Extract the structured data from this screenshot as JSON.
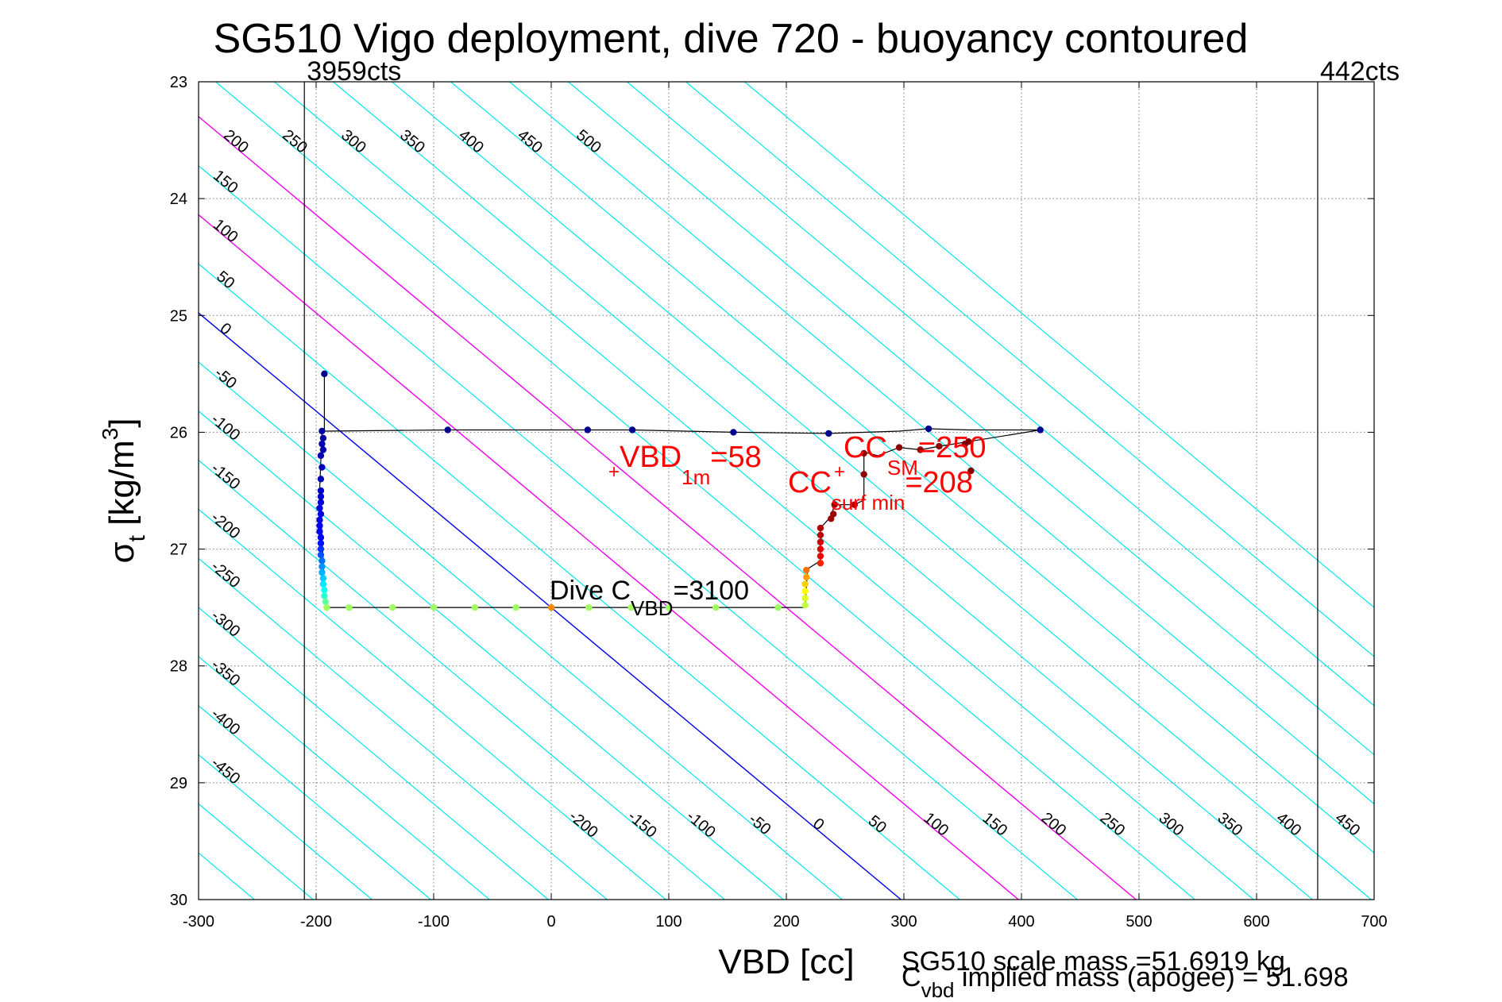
{
  "chart_data": {
    "type": "scatter",
    "title": "SG510 Vigo deployment, dive 720 - buoyancy contoured",
    "xlabel": "VBD [cc]",
    "ylabel": "σt [kg/m3]",
    "ylabel_main": "σ",
    "ylabel_sub": "t",
    "ylabel_rest": " [kg/m",
    "ylabel_sup": "3",
    "ylabel_close": "]",
    "xlim": [
      -300,
      700
    ],
    "ylim": [
      30,
      23
    ],
    "y_reversed": true,
    "grid": true,
    "x_ticks": [
      "-300",
      "-200",
      "-100",
      "0",
      "100",
      "200",
      "300",
      "400",
      "500",
      "600",
      "700"
    ],
    "y_ticks": [
      "23",
      "24",
      "25",
      "26",
      "27",
      "28",
      "29",
      "30"
    ],
    "vertical_lines": [
      {
        "x": -210,
        "label": "3959cts"
      },
      {
        "x": 652,
        "label": "442cts"
      }
    ],
    "contours": {
      "color": "#00e5ee",
      "lines": [
        {
          "b": -600
        },
        {
          "b": -550
        },
        {
          "b": -500
        },
        {
          "b": -450,
          "label": "-450",
          "label_at_top": true
        },
        {
          "b": -400,
          "label": "-400",
          "label_at_top": true
        },
        {
          "b": -350,
          "label": "-350",
          "label_at_top": true
        },
        {
          "b": -300,
          "label": "-300",
          "label_at_top": true
        },
        {
          "b": -250,
          "label": "-250",
          "label_at_top": true
        },
        {
          "b": -200,
          "label": "-200",
          "label_at_top": true,
          "label_bottom": true
        },
        {
          "b": -150,
          "label": "-150",
          "label_at_top": true,
          "label_bottom": true
        },
        {
          "b": -100,
          "label": "-100",
          "label_at_top": true,
          "label_bottom": true
        },
        {
          "b": -50,
          "label": "-50",
          "label_at_top": true,
          "label_bottom": true
        },
        {
          "b": 0,
          "label": "0",
          "label_at_top": true,
          "label_bottom": true,
          "color": "#0000ee"
        },
        {
          "b": 50,
          "label": "50",
          "label_at_top": true,
          "label_bottom": true
        },
        {
          "b": 100,
          "label": "100",
          "label_at_top": true,
          "label_bottom": true,
          "color": "#ee00ee"
        },
        {
          "b": 150,
          "label": "150",
          "label_at_top": true,
          "label_bottom": true
        },
        {
          "b": 200,
          "label": "200",
          "label_at_top": true,
          "label_bottom": true,
          "color": "#ee00ee"
        },
        {
          "b": 250,
          "label": "250",
          "label_at_top": true,
          "label_bottom": true
        },
        {
          "b": 300,
          "label": "300",
          "label_at_top": true,
          "label_bottom": true
        },
        {
          "b": 350,
          "label": "350",
          "label_at_top": true,
          "label_bottom": true
        },
        {
          "b": 400,
          "label": "400",
          "label_at_top": true,
          "label_bottom": true
        },
        {
          "b": 450,
          "label": "450",
          "label_at_top": true,
          "label_bottom": true
        },
        {
          "b": 500,
          "label": "500",
          "label_at_top": true,
          "label_bottom": true
        },
        {
          "b": 550
        },
        {
          "b": 600
        },
        {
          "b": 650
        },
        {
          "b": 700
        }
      ]
    },
    "trace": [
      [
        -193,
        25.5
      ],
      [
        -193,
        25.99
      ],
      [
        -88,
        25.98
      ],
      [
        31,
        25.98
      ],
      [
        69,
        25.98
      ],
      [
        155,
        26.0
      ],
      [
        236,
        26.01
      ],
      [
        268,
        26.0
      ],
      [
        296,
        25.99
      ],
      [
        321,
        25.97
      ],
      [
        355,
        25.98
      ],
      [
        416,
        25.98
      ],
      [
        355,
        26.08
      ],
      [
        330,
        26.12
      ],
      [
        314,
        26.15
      ],
      [
        296,
        26.13
      ],
      [
        278,
        26.2
      ],
      [
        266,
        26.17
      ],
      [
        266,
        26.58
      ],
      [
        258,
        26.62
      ],
      [
        241,
        26.62
      ],
      [
        238,
        26.72
      ],
      [
        229,
        26.82
      ],
      [
        229,
        27.1
      ],
      [
        218,
        27.17
      ],
      [
        216,
        27.5
      ],
      [
        193,
        27.5
      ],
      [
        140,
        27.5
      ],
      [
        100,
        27.5
      ],
      [
        68,
        27.5
      ],
      [
        32,
        27.5
      ],
      [
        0,
        27.5
      ],
      [
        -30,
        27.5
      ],
      [
        -65,
        27.5
      ],
      [
        -100,
        27.5
      ],
      [
        -135,
        27.5
      ],
      [
        -172,
        27.5
      ],
      [
        -191,
        27.5
      ],
      [
        -193,
        27.3
      ],
      [
        -197,
        26.5
      ],
      [
        -195,
        26.0
      ]
    ],
    "points": [
      {
        "x": -193,
        "y": 25.5,
        "color": "#00008f"
      },
      {
        "x": -88,
        "y": 25.98,
        "color": "#00008f"
      },
      {
        "x": 31,
        "y": 25.98,
        "color": "#00008f"
      },
      {
        "x": 69,
        "y": 25.98,
        "color": "#00008f"
      },
      {
        "x": 155,
        "y": 26.0,
        "color": "#00008f"
      },
      {
        "x": 236,
        "y": 26.01,
        "color": "#00008f"
      },
      {
        "x": 321,
        "y": 25.97,
        "color": "#00008f"
      },
      {
        "x": 416,
        "y": 25.98,
        "color": "#00008f"
      },
      {
        "x": -195,
        "y": 25.99,
        "color": "#00009f"
      },
      {
        "x": -194,
        "y": 26.05,
        "color": "#0000a8"
      },
      {
        "x": -195,
        "y": 26.1,
        "color": "#0000aa"
      },
      {
        "x": -194,
        "y": 26.15,
        "color": "#0000af"
      },
      {
        "x": -196,
        "y": 26.2,
        "color": "#0000b0"
      },
      {
        "x": -195,
        "y": 26.3,
        "color": "#0000b8"
      },
      {
        "x": -196,
        "y": 26.4,
        "color": "#0000bf"
      },
      {
        "x": -196,
        "y": 26.5,
        "color": "#0000c4"
      },
      {
        "x": -196,
        "y": 26.55,
        "color": "#0000cc"
      },
      {
        "x": -196,
        "y": 26.6,
        "color": "#0000d4"
      },
      {
        "x": -197,
        "y": 26.65,
        "color": "#0000da"
      },
      {
        "x": -196,
        "y": 26.7,
        "color": "#0000e0"
      },
      {
        "x": -197,
        "y": 26.75,
        "color": "#0000e8"
      },
      {
        "x": -197,
        "y": 26.8,
        "color": "#0000ef"
      },
      {
        "x": -197,
        "y": 26.85,
        "color": "#0000f4"
      },
      {
        "x": -196,
        "y": 26.9,
        "color": "#0000ff"
      },
      {
        "x": -196,
        "y": 26.95,
        "color": "#0010ff"
      },
      {
        "x": -196,
        "y": 27.0,
        "color": "#0030ff"
      },
      {
        "x": -196,
        "y": 27.05,
        "color": "#0050ff"
      },
      {
        "x": -195,
        "y": 27.1,
        "color": "#0070ff"
      },
      {
        "x": -195,
        "y": 27.15,
        "color": "#0090ff"
      },
      {
        "x": -195,
        "y": 27.2,
        "color": "#00b0ff"
      },
      {
        "x": -194,
        "y": 27.25,
        "color": "#00d0ff"
      },
      {
        "x": -194,
        "y": 27.3,
        "color": "#00e8ff"
      },
      {
        "x": -193,
        "y": 27.35,
        "color": "#10ffef"
      },
      {
        "x": -193,
        "y": 27.4,
        "color": "#30ffcf"
      },
      {
        "x": -192,
        "y": 27.45,
        "color": "#60ffa0"
      },
      {
        "x": -191,
        "y": 27.5,
        "color": "#9fff60"
      },
      {
        "x": -172,
        "y": 27.5,
        "color": "#9fff60"
      },
      {
        "x": -135,
        "y": 27.5,
        "color": "#9fff60"
      },
      {
        "x": -100,
        "y": 27.5,
        "color": "#9fff60"
      },
      {
        "x": -65,
        "y": 27.5,
        "color": "#9fff60"
      },
      {
        "x": -30,
        "y": 27.5,
        "color": "#9fff60"
      },
      {
        "x": 0,
        "y": 27.5,
        "color": "#ff8c00"
      },
      {
        "x": 32,
        "y": 27.5,
        "color": "#9fff60"
      },
      {
        "x": 68,
        "y": 27.5,
        "color": "#9fff60"
      },
      {
        "x": 100,
        "y": 27.5,
        "color": "#9fff60"
      },
      {
        "x": 140,
        "y": 27.5,
        "color": "#9fff60"
      },
      {
        "x": 193,
        "y": 27.5,
        "color": "#9fff60"
      },
      {
        "x": 216,
        "y": 27.48,
        "color": "#bfff40"
      },
      {
        "x": 216,
        "y": 27.42,
        "color": "#dfff20"
      },
      {
        "x": 216,
        "y": 27.36,
        "color": "#ffff00"
      },
      {
        "x": 216,
        "y": 27.3,
        "color": "#ffd000"
      },
      {
        "x": 217,
        "y": 27.24,
        "color": "#ffa000"
      },
      {
        "x": 217,
        "y": 27.18,
        "color": "#ff7000"
      },
      {
        "x": 229,
        "y": 27.12,
        "color": "#ff2000"
      },
      {
        "x": 229,
        "y": 27.06,
        "color": "#ef0000"
      },
      {
        "x": 229,
        "y": 27.0,
        "color": "#df0000"
      },
      {
        "x": 229,
        "y": 26.94,
        "color": "#cf0000"
      },
      {
        "x": 229,
        "y": 26.88,
        "color": "#bf0000"
      },
      {
        "x": 229,
        "y": 26.82,
        "color": "#af0000"
      },
      {
        "x": 238,
        "y": 26.74,
        "color": "#9f0000"
      },
      {
        "x": 240,
        "y": 26.7,
        "color": "#9f0000"
      },
      {
        "x": 241,
        "y": 26.62,
        "color": "#9f0000"
      },
      {
        "x": 258,
        "y": 26.62,
        "color": "#9f0000"
      },
      {
        "x": 266,
        "y": 26.36,
        "color": "#8f0000"
      },
      {
        "x": 266,
        "y": 26.18,
        "color": "#8f0000"
      },
      {
        "x": 296,
        "y": 26.13,
        "color": "#8f0000"
      },
      {
        "x": 314,
        "y": 26.15,
        "color": "#8f0000"
      },
      {
        "x": 330,
        "y": 26.12,
        "color": "#8f0000"
      },
      {
        "x": 352,
        "y": 26.1,
        "color": "#800000"
      },
      {
        "x": 355,
        "y": 26.08,
        "color": "#800000"
      },
      {
        "x": 357,
        "y": 26.33,
        "color": "#800000"
      }
    ],
    "annotations": {
      "vbd1m": {
        "main": "VBD",
        "sub": "1m",
        "rest": "=58"
      },
      "cc_sm": {
        "main": "CC",
        "sub": "SM",
        "rest": "=250"
      },
      "cc_surfmin": {
        "main": "CC",
        "sub": "surf min",
        "rest": "=208"
      },
      "dive_cvbd": {
        "main": "Dive C",
        "sub": "VBD",
        "rest": "=3100"
      },
      "scale_mass": "SG510 scale mass =51.6919 kg",
      "implied_mass": {
        "main": "C",
        "sub": "vbd",
        "rest": " implied mass (apogee) = 51.698"
      }
    }
  }
}
